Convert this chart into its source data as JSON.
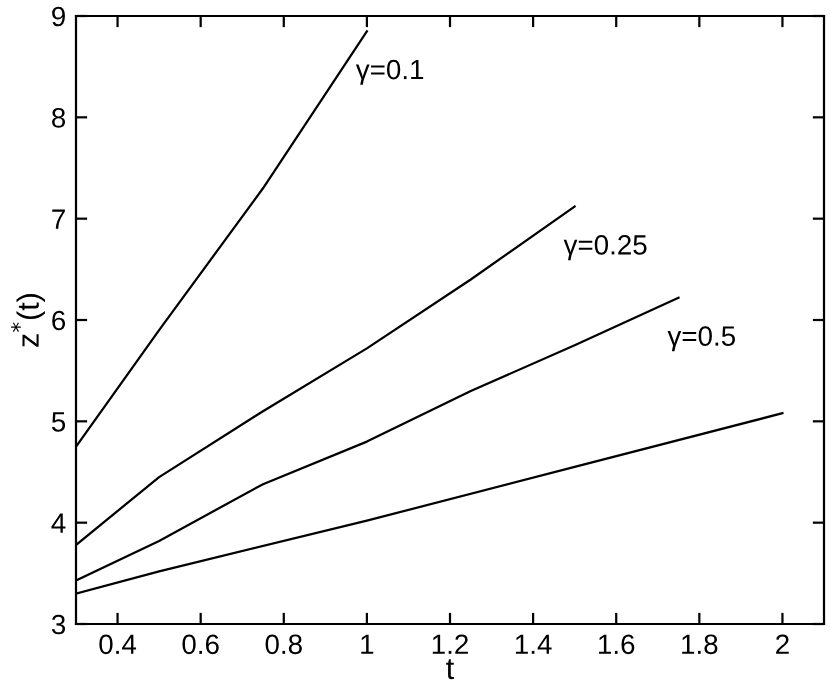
{
  "chart_data": {
    "type": "line",
    "xlabel": "t",
    "ylabel": "z$^{*}$(t)",
    "xlim": [
      0.3,
      2.1
    ],
    "xticks": [
      0.4,
      0.6,
      0.8,
      1,
      1.2,
      1.4,
      1.6,
      1.8,
      2
    ],
    "ylim": [
      3,
      9
    ],
    "yticks": [
      3,
      4,
      5,
      6,
      7,
      8,
      9
    ],
    "grid": false,
    "marker": "none",
    "line_style": "solid",
    "series": [
      {
        "name": "γ=0.1",
        "color": "#000000",
        "x": [
          0.3,
          0.5,
          0.75,
          1.0
        ],
        "values": [
          4.75,
          5.9,
          7.3,
          8.85
        ]
      },
      {
        "name": "γ=0.25",
        "color": "#000000",
        "x": [
          0.3,
          0.5,
          0.75,
          1.0,
          1.25,
          1.5
        ],
        "values": [
          3.78,
          4.45,
          5.1,
          5.72,
          6.4,
          7.12
        ]
      },
      {
        "name": "γ=0.5",
        "color": "#000000",
        "x": [
          0.3,
          0.5,
          0.75,
          1.0,
          1.25,
          1.5,
          1.75
        ],
        "values": [
          3.43,
          3.82,
          4.38,
          4.8,
          5.3,
          5.75,
          6.22
        ]
      },
      {
        "color": "#000000",
        "x": [
          0.3,
          0.5,
          1.0,
          1.5,
          2.0
        ],
        "values": [
          3.3,
          3.52,
          4.02,
          4.55,
          5.08
        ]
      }
    ]
  }
}
